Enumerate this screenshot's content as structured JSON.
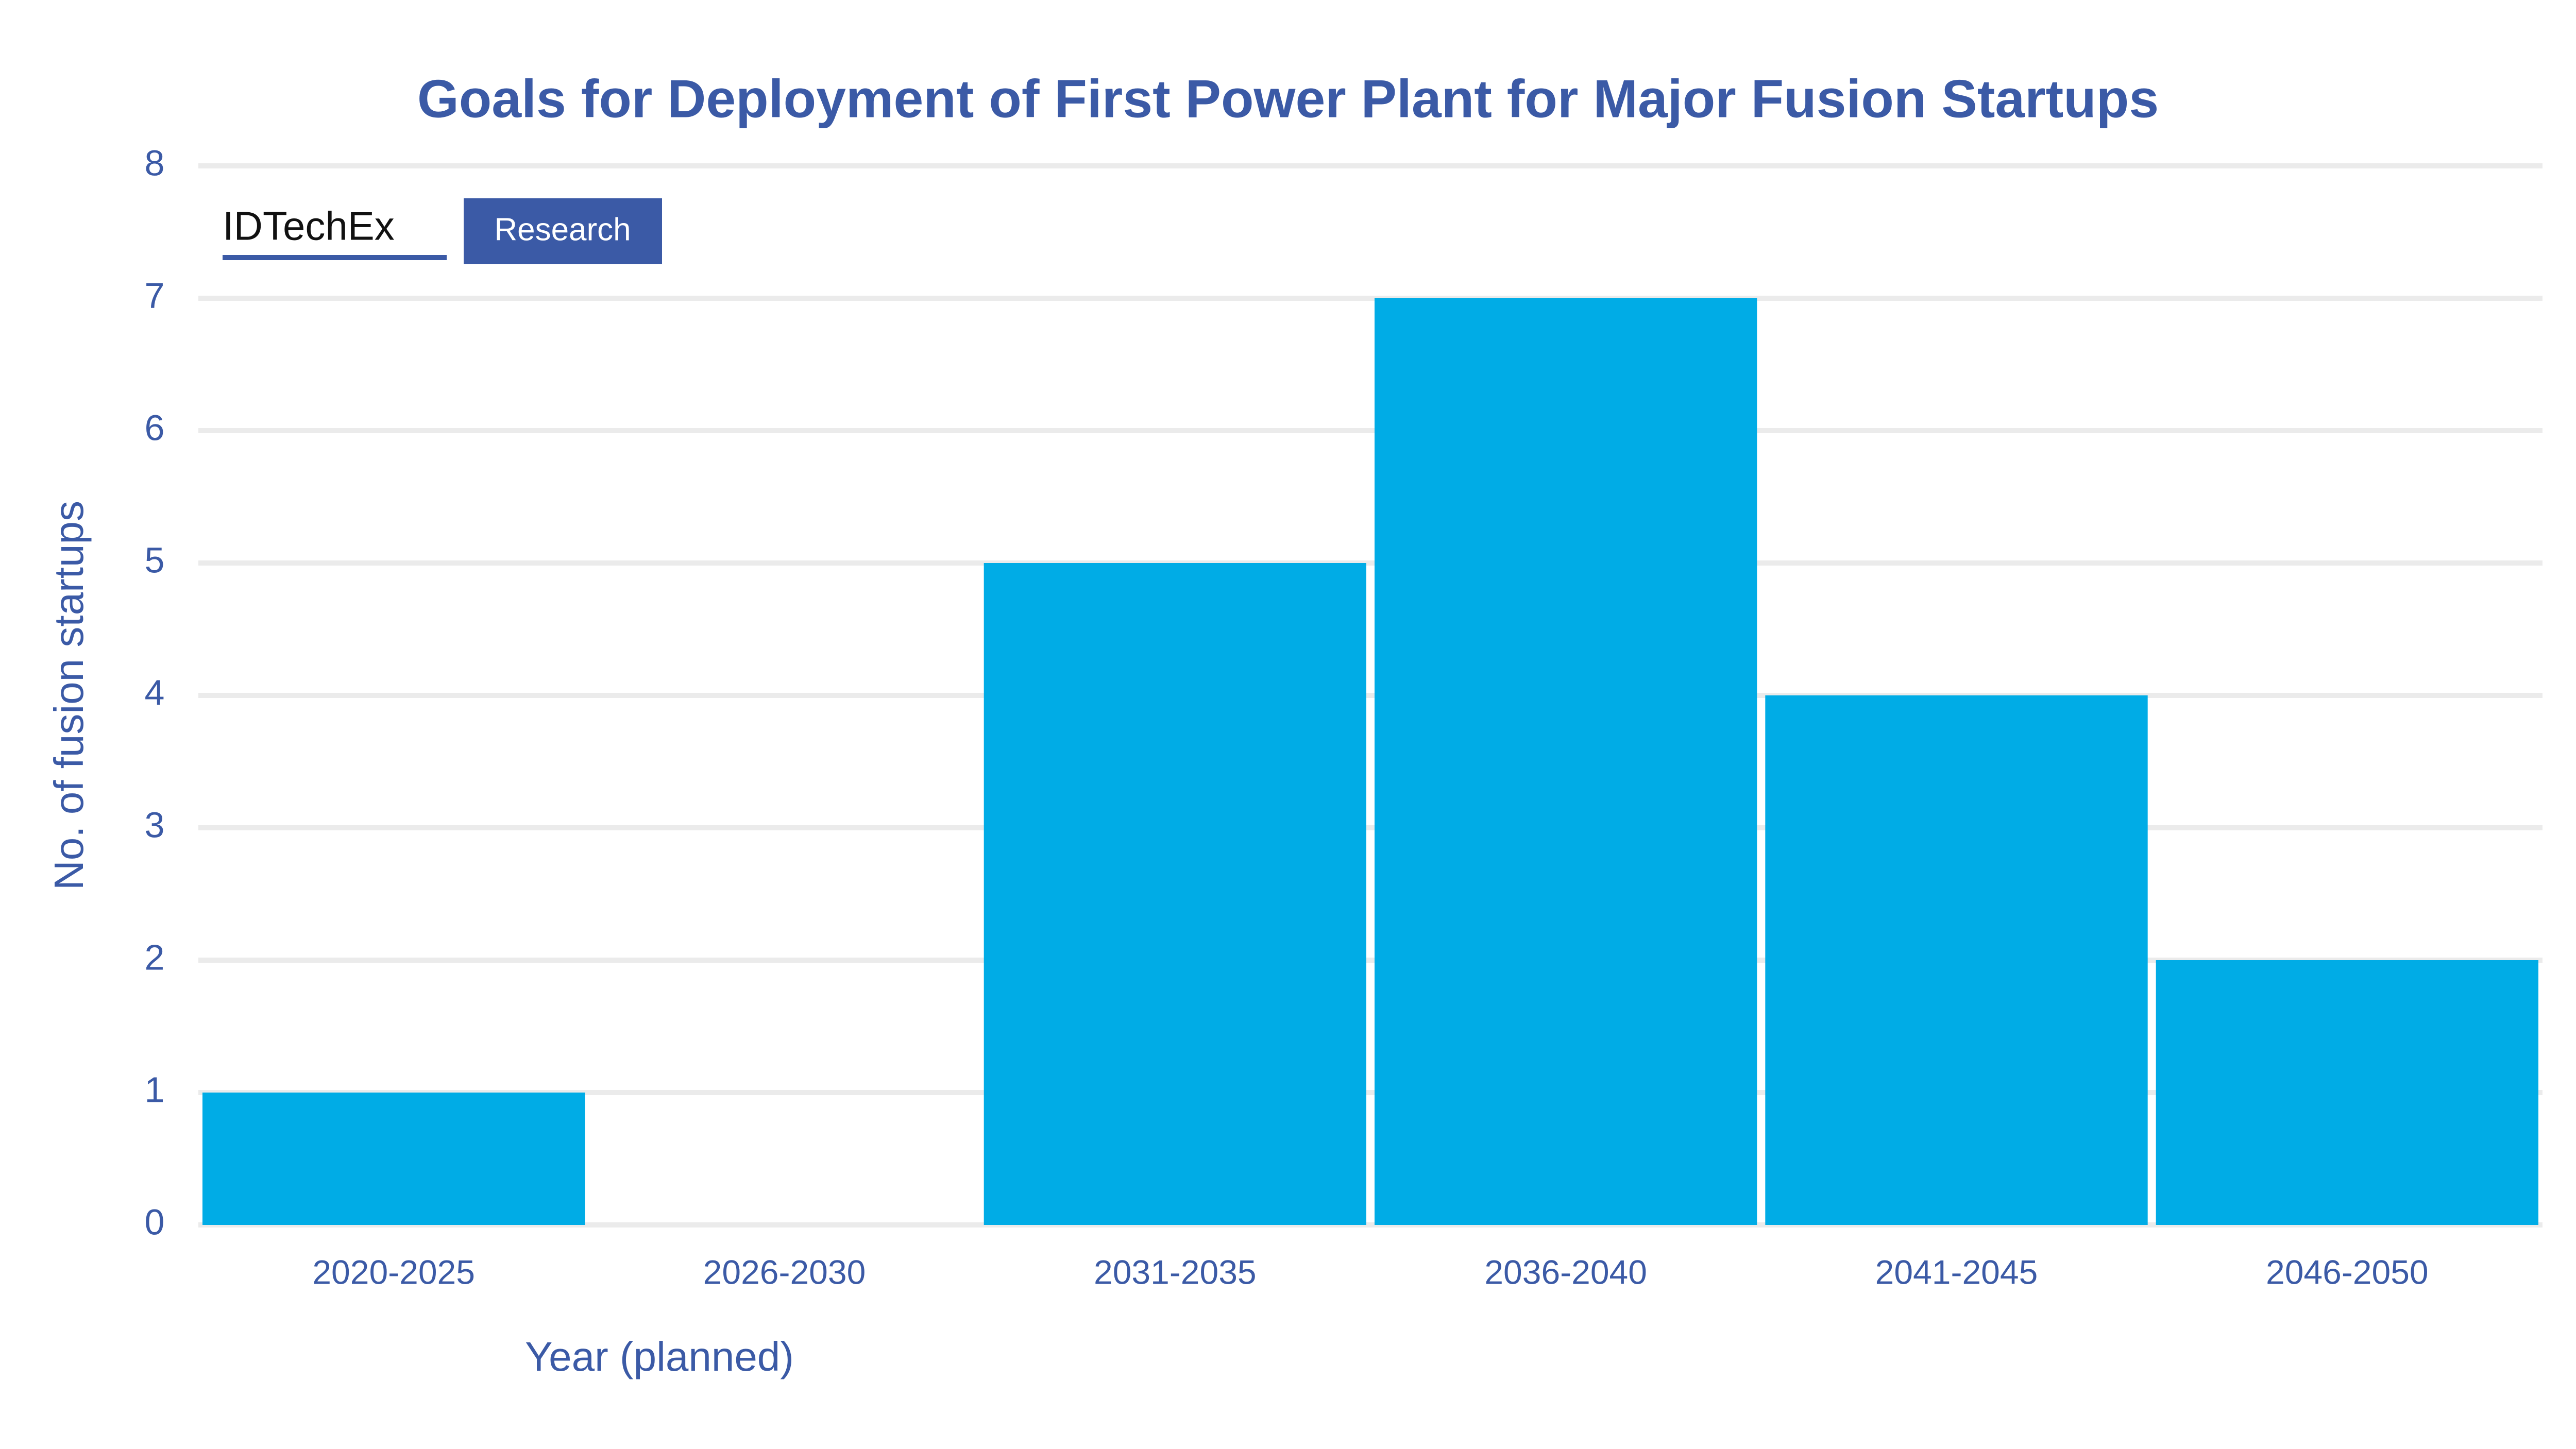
{
  "chart_data": {
    "type": "bar",
    "title": "Goals for Deployment of First Power Plant for Major Fusion Startups",
    "x_label": "Year (planned)",
    "y_label": "No. of fusion startups",
    "categories": [
      "2020-2025",
      "2026-2030",
      "2031-2035",
      "2036-2040",
      "2041-2045",
      "2046-2050"
    ],
    "values": [
      1,
      0,
      5,
      7,
      4,
      2
    ],
    "color": "#00ace6",
    "ylim": [
      0,
      8
    ],
    "yticks": [
      0,
      1,
      2,
      3,
      4,
      5,
      6,
      7,
      8
    ],
    "grid": true
  },
  "logo": {
    "brand": "IDTechEx",
    "tag": "Research"
  }
}
